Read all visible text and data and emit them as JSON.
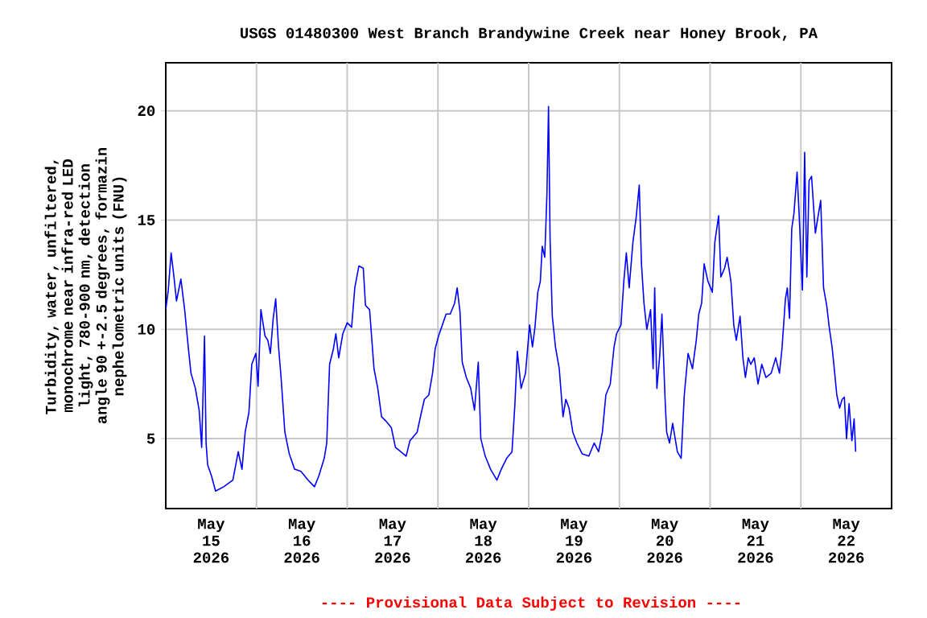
{
  "chart_data": {
    "type": "line",
    "title": "USGS 01480300 West Branch Brandywine Creek near Honey Brook, PA",
    "ylabel": "Turbidity, water, unfiltered, monochrome near infra-red LED light, 780-900 nm, detection angle 90 +-2.5 degrees, formazin nephelometric units (FNU)",
    "annotations": [
      "---- Provisional Data Subject to Revision ----"
    ],
    "color": "#0000ff",
    "grid": true,
    "xlim": [
      "2026-05-15",
      "2026-05-23"
    ],
    "xticks": [
      {
        "value": "2026-05-15T12:00",
        "label": "May 15 2026"
      },
      {
        "value": "2026-05-16",
        "label": null
      },
      {
        "value": "2026-05-16T12:00",
        "label": "May 16 2026"
      },
      {
        "value": "2026-05-17",
        "label": null
      },
      {
        "value": "2026-05-17T12:00",
        "label": "May 17 2026"
      },
      {
        "value": "2026-05-18",
        "label": null
      },
      {
        "value": "2026-05-18T12:00",
        "label": "May 18 2026"
      },
      {
        "value": "2026-05-19",
        "label": null
      },
      {
        "value": "2026-05-19T12:00",
        "label": "May 19 2026"
      },
      {
        "value": "2026-05-20",
        "label": null
      },
      {
        "value": "2026-05-20T12:00",
        "label": "May 20 2026"
      },
      {
        "value": "2026-05-21",
        "label": null
      },
      {
        "value": "2026-05-21T12:00",
        "label": "May 21 2026"
      },
      {
        "value": "2026-05-22",
        "label": null
      },
      {
        "value": "2026-05-22T12:00",
        "label": "May 22 2026"
      }
    ],
    "ylim": [
      1.8,
      22.2
    ],
    "yticks": [
      5,
      10,
      15,
      20
    ],
    "x": [
      "2026-05-15T00:00",
      "2026-05-15T00:40",
      "2026-05-15T01:25",
      "2026-05-15T02:10",
      "2026-05-15T02:50",
      "2026-05-15T04:00",
      "2026-05-15T05:00",
      "2026-05-15T06:00",
      "2026-05-15T06:40",
      "2026-05-15T07:50",
      "2026-05-15T08:50",
      "2026-05-15T09:30",
      "2026-05-15T10:15",
      "2026-05-15T10:40",
      "2026-05-15T11:05",
      "2026-05-15T12:05",
      "2026-05-15T13:10",
      "2026-05-15T15:20",
      "2026-05-15T17:45",
      "2026-05-15T19:10",
      "2026-05-15T20:10",
      "2026-05-15T21:00",
      "2026-05-15T22:00",
      "2026-05-15T22:45",
      "2026-05-15T23:50",
      "2026-05-16T00:25",
      "2026-05-16T01:10",
      "2026-05-16T02:15",
      "2026-05-16T03:00",
      "2026-05-16T03:40",
      "2026-05-16T04:25",
      "2026-05-16T05:05",
      "2026-05-16T05:50",
      "2026-05-16T06:30",
      "2026-05-16T07:30",
      "2026-05-16T08:40",
      "2026-05-16T10:05",
      "2026-05-16T11:45",
      "2026-05-16T13:40",
      "2026-05-16T15:20",
      "2026-05-16T16:30",
      "2026-05-16T17:55",
      "2026-05-16T18:35",
      "2026-05-16T19:20",
      "2026-05-16T20:20",
      "2026-05-16T21:00",
      "2026-05-16T21:45",
      "2026-05-16T22:50",
      "2026-05-17T00:00",
      "2026-05-17T01:10",
      "2026-05-17T02:00",
      "2026-05-17T03:05",
      "2026-05-17T04:15",
      "2026-05-17T04:50",
      "2026-05-17T05:55",
      "2026-05-17T07:05",
      "2026-05-17T08:05",
      "2026-05-17T09:05",
      "2026-05-17T10:15",
      "2026-05-17T11:40",
      "2026-05-17T12:45",
      "2026-05-17T14:10",
      "2026-05-17T15:35",
      "2026-05-17T16:35",
      "2026-05-17T18:30",
      "2026-05-17T19:45",
      "2026-05-17T20:25",
      "2026-05-17T21:35",
      "2026-05-17T22:35",
      "2026-05-17T23:15",
      "2026-05-18T00:10",
      "2026-05-18T01:10",
      "2026-05-18T02:10",
      "2026-05-18T03:15",
      "2026-05-18T04:25",
      "2026-05-18T05:05",
      "2026-05-18T05:50",
      "2026-05-18T06:25",
      "2026-05-18T07:30",
      "2026-05-18T08:40",
      "2026-05-18T09:40",
      "2026-05-18T10:40",
      "2026-05-18T11:20",
      "2026-05-18T12:30",
      "2026-05-18T13:55",
      "2026-05-18T15:35",
      "2026-05-18T16:45",
      "2026-05-18T18:10",
      "2026-05-18T19:35",
      "2026-05-18T20:20",
      "2026-05-18T21:00",
      "2026-05-18T22:00",
      "2026-05-18T23:10",
      "2026-05-19T00:15",
      "2026-05-19T01:00",
      "2026-05-19T01:40",
      "2026-05-19T02:25",
      "2026-05-19T03:05",
      "2026-05-19T03:35",
      "2026-05-19T04:15",
      "2026-05-19T04:50",
      "2026-05-19T05:15",
      "2026-05-19T05:40",
      "2026-05-19T06:15",
      "2026-05-19T07:05",
      "2026-05-19T08:05",
      "2026-05-19T09:05",
      "2026-05-19T09:50",
      "2026-05-19T10:40",
      "2026-05-19T11:40",
      "2026-05-19T12:45",
      "2026-05-19T14:10",
      "2026-05-19T15:55",
      "2026-05-19T17:20",
      "2026-05-19T18:30",
      "2026-05-19T19:30",
      "2026-05-19T20:25",
      "2026-05-19T21:35",
      "2026-05-19T22:35",
      "2026-05-19T23:15",
      "2026-05-20T00:25",
      "2026-05-20T01:10",
      "2026-05-20T01:50",
      "2026-05-20T02:35",
      "2026-05-20T03:35",
      "2026-05-20T04:25",
      "2026-05-20T05:15",
      "2026-05-20T05:50",
      "2026-05-20T06:30",
      "2026-05-20T07:15",
      "2026-05-20T08:15",
      "2026-05-20T08:55",
      "2026-05-20T09:20",
      "2026-05-20T09:55",
      "2026-05-20T10:40",
      "2026-05-20T11:15",
      "2026-05-20T12:05",
      "2026-05-20T12:30",
      "2026-05-20T13:15",
      "2026-05-20T14:05",
      "2026-05-20T15:20",
      "2026-05-20T16:20",
      "2026-05-20T17:10",
      "2026-05-20T18:10",
      "2026-05-20T19:20",
      "2026-05-20T20:20",
      "2026-05-20T21:00",
      "2026-05-20T21:45",
      "2026-05-20T22:25",
      "2026-05-20T23:25",
      "2026-05-21T00:35",
      "2026-05-21T01:15",
      "2026-05-21T02:15",
      "2026-05-21T02:50",
      "2026-05-21T03:50",
      "2026-05-21T04:30",
      "2026-05-21T05:30",
      "2026-05-21T06:15",
      "2026-05-21T06:55",
      "2026-05-21T07:55",
      "2026-05-21T08:40",
      "2026-05-21T09:20",
      "2026-05-21T10:05",
      "2026-05-21T10:45",
      "2026-05-21T11:40",
      "2026-05-21T12:40",
      "2026-05-21T13:40",
      "2026-05-21T14:45",
      "2026-05-21T16:10",
      "2026-05-21T17:20",
      "2026-05-21T18:20",
      "2026-05-21T19:00",
      "2026-05-21T19:55",
      "2026-05-21T20:25",
      "2026-05-21T21:00",
      "2026-05-21T21:35",
      "2026-05-21T22:10",
      "2026-05-21T23:00",
      "2026-05-21T23:35",
      "2026-05-22T00:25",
      "2026-05-22T01:00",
      "2026-05-22T01:35",
      "2026-05-22T02:10",
      "2026-05-22T02:50",
      "2026-05-22T03:50",
      "2026-05-22T04:40",
      "2026-05-22T05:15",
      "2026-05-22T06:00",
      "2026-05-22T06:50",
      "2026-05-22T07:30",
      "2026-05-22T08:15",
      "2026-05-22T08:50",
      "2026-05-22T09:30",
      "2026-05-22T10:15",
      "2026-05-22T10:55",
      "2026-05-22T11:30",
      "2026-05-22T12:05",
      "2026-05-22T12:45",
      "2026-05-22T13:30",
      "2026-05-22T14:05",
      "2026-05-22T14:30"
    ],
    "values": [
      10.9,
      11.8,
      13.5,
      12.4,
      11.3,
      12.3,
      10.9,
      9.1,
      8.0,
      7.3,
      6.3,
      4.6,
      9.7,
      4.8,
      3.8,
      3.3,
      2.6,
      2.8,
      3.1,
      4.4,
      3.6,
      5.3,
      6.2,
      8.4,
      8.9,
      7.4,
      10.9,
      9.7,
      9.5,
      8.9,
      10.5,
      11.4,
      9.2,
      7.8,
      5.3,
      4.3,
      3.6,
      3.5,
      3.1,
      2.8,
      3.3,
      4.1,
      4.8,
      8.4,
      9.1,
      9.8,
      8.7,
      9.8,
      10.3,
      10.1,
      11.9,
      12.9,
      12.8,
      11.1,
      10.9,
      8.2,
      7.3,
      6.0,
      5.8,
      5.5,
      4.6,
      4.4,
      4.2,
      4.9,
      5.3,
      6.3,
      6.8,
      7.0,
      8.0,
      9.1,
      9.7,
      10.2,
      10.7,
      10.7,
      11.2,
      11.9,
      10.8,
      8.5,
      7.8,
      7.3,
      6.3,
      8.5,
      5.0,
      4.2,
      3.6,
      3.1,
      3.6,
      4.1,
      4.4,
      6.5,
      9.0,
      7.3,
      8.0,
      10.2,
      9.2,
      10.1,
      11.7,
      12.2,
      13.8,
      13.3,
      16.2,
      20.2,
      14.1,
      10.6,
      9.2,
      8.2,
      6.0,
      6.8,
      6.4,
      5.3,
      4.8,
      4.3,
      4.2,
      4.8,
      4.4,
      5.3,
      7.0,
      7.5,
      9.2,
      9.8,
      10.2,
      12.2,
      13.5,
      11.9,
      14.0,
      15.1,
      16.6,
      13.0,
      11.2,
      10.0,
      10.9,
      8.2,
      11.9,
      7.3,
      8.8,
      10.7,
      6.8,
      5.3,
      4.8,
      5.7,
      4.4,
      4.1,
      7.0,
      8.9,
      8.2,
      9.5,
      10.7,
      11.2,
      13.0,
      12.2,
      11.7,
      14.0,
      15.2,
      12.4,
      12.8,
      13.3,
      12.2,
      10.2,
      9.5,
      10.6,
      8.7,
      7.8,
      8.7,
      8.4,
      8.7,
      7.5,
      8.4,
      7.8,
      8.0,
      8.7,
      8.0,
      9.1,
      11.4,
      11.9,
      10.5,
      14.6,
      15.3,
      17.2,
      15.1,
      11.8,
      18.1,
      12.4,
      16.8,
      17.0,
      14.4,
      15.3,
      15.9,
      11.9,
      11.1,
      10.1,
      9.2,
      8.2,
      7.0,
      6.4,
      6.8,
      6.9,
      5.0,
      6.6,
      4.9,
      5.9,
      4.4
    ]
  }
}
